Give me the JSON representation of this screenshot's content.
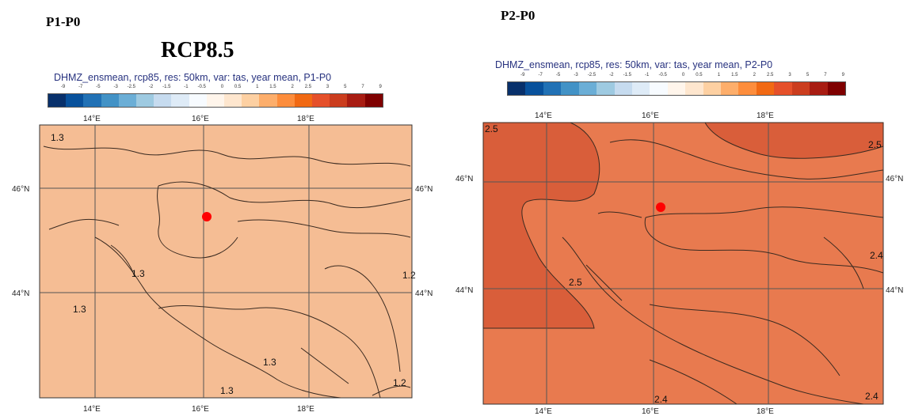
{
  "left_panel": {
    "heading": "P1-P0",
    "scenario": "RCP8.5",
    "caption": "DHMZ_ensmean, rcp85, res: 50km, var: tas, year mean, P1-P0",
    "fill_color": "#f5bd94",
    "lon_ticks_top": [
      "14°E",
      "16°E",
      "18°E"
    ],
    "lon_ticks_bottom": [
      "14°E",
      "16°E",
      "18°E"
    ],
    "lat_ticks_left": [
      "46°N",
      "44°N"
    ],
    "lat_ticks_right": [
      "46°N",
      "44°N"
    ],
    "contour_labels": [
      "1.3",
      "1.3",
      "1.3",
      "1.3",
      "1.3",
      "1.2",
      "1.2"
    ]
  },
  "right_panel": {
    "heading": "P2-P0",
    "caption": "DHMZ_ensmean, rcp85, res: 50km, var: tas, year mean, P2-P0",
    "fill_color": "#e87a4f",
    "fill_color_dark": "#d95e3a",
    "lon_ticks_top": [
      "14°E",
      "16°E",
      "18°E"
    ],
    "lon_ticks_bottom": [
      "14°E",
      "16°E",
      "18°E"
    ],
    "lat_ticks_left": [
      "46°N",
      "44°N"
    ],
    "lat_ticks_right": [
      "46°N",
      "44°N"
    ],
    "contour_labels": [
      "2.5",
      "2.5",
      "2.5",
      "2.4",
      "2.4",
      "2.4"
    ]
  },
  "colorbar": {
    "ticks": [
      "-9",
      "-7",
      "-5",
      "-3",
      "-2.5",
      "-2",
      "-1.5",
      "-1",
      "-0.5",
      "0",
      "0.5",
      "1",
      "1.5",
      "2",
      "2.5",
      "3",
      "5",
      "7",
      "9"
    ],
    "colors": [
      "#08306b",
      "#08519c",
      "#2171b5",
      "#4292c6",
      "#6baed6",
      "#9ecae1",
      "#c6dbef",
      "#deebf7",
      "#f7fbff",
      "#fff5eb",
      "#fee6ce",
      "#fdd0a2",
      "#fdae6b",
      "#fd8d3c",
      "#f16913",
      "#e5502a",
      "#cb3d1e",
      "#a81c12",
      "#7f0000"
    ]
  },
  "marker": {
    "color": "#ff0000"
  }
}
